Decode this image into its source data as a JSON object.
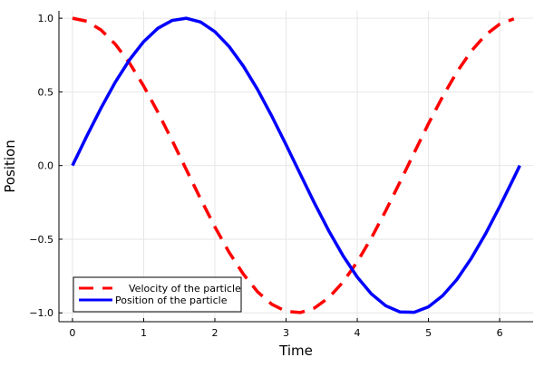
{
  "chart_data": {
    "type": "line",
    "xlabel": "Time",
    "ylabel": "Position",
    "xlim": [
      -0.19,
      6.47
    ],
    "ylim": [
      -1.06,
      1.05
    ],
    "xticks": [
      0,
      1,
      2,
      3,
      4,
      5,
      6
    ],
    "xtick_labels": [
      "0",
      "1",
      "2",
      "3",
      "4",
      "5",
      "6"
    ],
    "yticks": [
      1.0,
      0.5,
      0.0,
      -0.5,
      -1.0
    ],
    "ytick_labels": [
      "1.0",
      "0.5",
      "0.0",
      "−0.5",
      "−1.0"
    ],
    "grid": true,
    "legend_position": "bottom-left",
    "series": [
      {
        "name": "Velocity of the particle",
        "color": "#ff0000",
        "dash": "dashed",
        "x": [
          0.0,
          0.2,
          0.4,
          0.6,
          0.8,
          1.0,
          1.2,
          1.4,
          1.6,
          1.8,
          2.0,
          2.2,
          2.4,
          2.6,
          2.8,
          3.0,
          3.2,
          3.4,
          3.6,
          3.8,
          4.0,
          4.2,
          4.4,
          4.6,
          4.8,
          5.0,
          5.2,
          5.4,
          5.6,
          5.8,
          6.0,
          6.2
        ],
        "y": [
          1.0,
          0.98,
          0.921,
          0.825,
          0.697,
          0.54,
          0.362,
          0.17,
          -0.029,
          -0.227,
          -0.416,
          -0.589,
          -0.737,
          -0.857,
          -0.942,
          -0.99,
          -0.998,
          -0.967,
          -0.897,
          -0.791,
          -0.654,
          -0.49,
          -0.307,
          -0.112,
          0.087,
          0.284,
          0.469,
          0.635,
          0.776,
          0.886,
          0.96,
          0.996
        ]
      },
      {
        "name": "Position of the particle",
        "color": "#0000ff",
        "dash": "solid",
        "x": [
          0.0,
          0.2,
          0.4,
          0.6,
          0.8,
          1.0,
          1.2,
          1.4,
          1.6,
          1.8,
          2.0,
          2.2,
          2.4,
          2.6,
          2.8,
          3.0,
          3.2,
          3.4,
          3.6,
          3.8,
          4.0,
          4.2,
          4.4,
          4.6,
          4.8,
          5.0,
          5.2,
          5.4,
          5.6,
          5.8,
          6.0,
          6.2,
          6.283
        ],
        "y": [
          0.0,
          0.199,
          0.389,
          0.565,
          0.717,
          0.841,
          0.932,
          0.985,
          1.0,
          0.974,
          0.909,
          0.808,
          0.675,
          0.516,
          0.335,
          0.141,
          -0.058,
          -0.256,
          -0.443,
          -0.612,
          -0.757,
          -0.872,
          -0.952,
          -0.994,
          -0.996,
          -0.959,
          -0.883,
          -0.773,
          -0.631,
          -0.465,
          -0.279,
          -0.083,
          0.0
        ]
      }
    ]
  }
}
